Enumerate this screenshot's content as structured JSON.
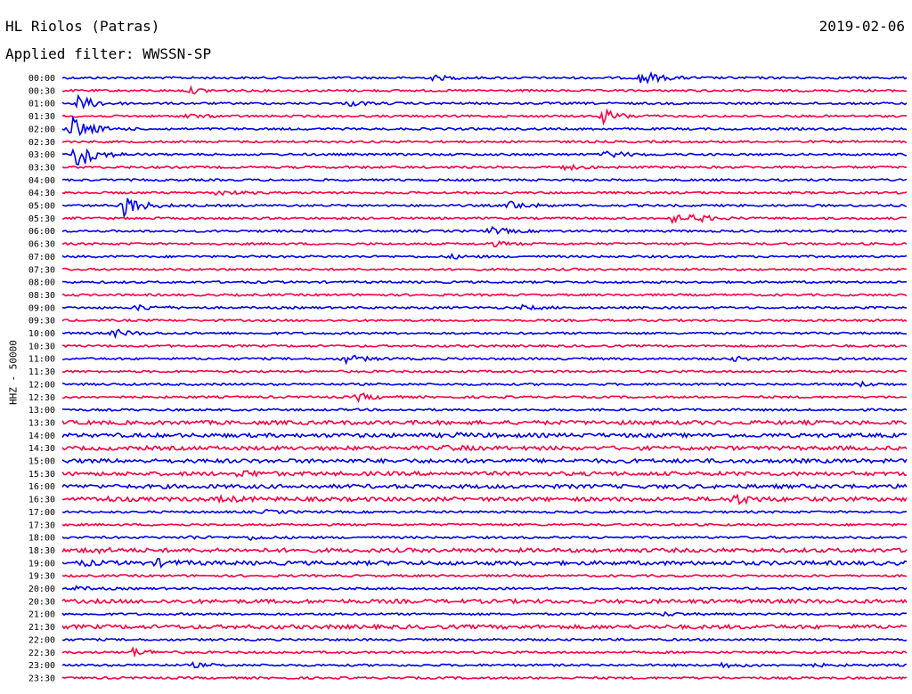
{
  "header": {
    "station": "HL Riolos (Patras)",
    "filter": "Applied filter: WWSSN-SP",
    "date": "2019-02-06"
  },
  "axis": {
    "channel_label": "HHZ - 50000"
  },
  "colors": {
    "odd": "#0000f0",
    "even": "#ff0040",
    "text": "#000000"
  },
  "chart_data": {
    "type": "line",
    "subtype": "helicorder",
    "title": "HL Riolos (Patras)",
    "subtitle": "Applied filter: WWSSN-SP",
    "ylabel": "HHZ - 50000",
    "date": "2019-02-06",
    "row_labels": [
      "00:00",
      "00:30",
      "01:00",
      "01:30",
      "02:00",
      "02:30",
      "03:00",
      "03:30",
      "04:00",
      "04:30",
      "05:00",
      "05:30",
      "06:00",
      "06:30",
      "07:00",
      "07:30",
      "08:00",
      "08:30",
      "09:00",
      "09:30",
      "10:00",
      "10:30",
      "11:00",
      "11:30",
      "12:00",
      "12:30",
      "13:00",
      "13:30",
      "14:00",
      "14:30",
      "15:00",
      "15:30",
      "16:00",
      "16:30",
      "17:00",
      "17:30",
      "18:00",
      "18:30",
      "19:00",
      "19:30",
      "20:00",
      "20:30",
      "21:00",
      "21:30",
      "22:00",
      "22:30",
      "23:00",
      "23:30"
    ],
    "minutes_per_row": 30,
    "events": [
      {
        "row": 0,
        "minute": 13.1,
        "amp": 2.5
      },
      {
        "row": 0,
        "minute": 20.5,
        "amp": 8
      },
      {
        "row": 1,
        "minute": 4.5,
        "amp": 3
      },
      {
        "row": 2,
        "minute": 0.5,
        "amp": 9
      },
      {
        "row": 2,
        "minute": 10.2,
        "amp": 2.5
      },
      {
        "row": 3,
        "minute": 4.3,
        "amp": 2.2
      },
      {
        "row": 3,
        "minute": 19.2,
        "amp": 7
      },
      {
        "row": 4,
        "minute": 0.3,
        "amp": 14
      },
      {
        "row": 6,
        "minute": 19.3,
        "amp": 4
      },
      {
        "row": 6,
        "minute": 0.5,
        "amp": 16
      },
      {
        "row": 7,
        "minute": 17.8,
        "amp": 2.5
      },
      {
        "row": 9,
        "minute": 5.4,
        "amp": 3
      },
      {
        "row": 10,
        "minute": 15.9,
        "amp": 5
      },
      {
        "row": 10,
        "minute": 2.2,
        "amp": 12
      },
      {
        "row": 11,
        "minute": 21.6,
        "amp": 4
      },
      {
        "row": 11,
        "minute": 22.4,
        "amp": 3.5
      },
      {
        "row": 12,
        "minute": 15.2,
        "amp": 4
      },
      {
        "row": 13,
        "minute": 15.1,
        "amp": 3
      },
      {
        "row": 14,
        "minute": 13.7,
        "amp": 2
      },
      {
        "row": 18,
        "minute": 2.7,
        "amp": 3
      },
      {
        "row": 18,
        "minute": 16.3,
        "amp": 2
      },
      {
        "row": 20,
        "minute": 1.8,
        "amp": 4
      },
      {
        "row": 22,
        "minute": 23.8,
        "amp": 2
      },
      {
        "row": 22,
        "minute": 10.0,
        "amp": 5
      },
      {
        "row": 24,
        "minute": 28.2,
        "amp": 2.5
      },
      {
        "row": 25,
        "minute": 10.5,
        "amp": 4
      },
      {
        "row": 28,
        "minute": 13.8,
        "amp": 1.5
      },
      {
        "row": 29,
        "minute": 13.6,
        "amp": 2
      },
      {
        "row": 31,
        "minute": 6.3,
        "amp": 3
      },
      {
        "row": 33,
        "minute": 1.3,
        "amp": 2
      },
      {
        "row": 33,
        "minute": 5.6,
        "amp": 3
      },
      {
        "row": 33,
        "minute": 23.8,
        "amp": 5
      },
      {
        "row": 34,
        "minute": 7.1,
        "amp": 1.8
      },
      {
        "row": 36,
        "minute": 4.4,
        "amp": 1.8
      },
      {
        "row": 36,
        "minute": 6.6,
        "amp": 2
      },
      {
        "row": 37,
        "minute": 0.9,
        "amp": 3
      },
      {
        "row": 38,
        "minute": 0.7,
        "amp": 2
      },
      {
        "row": 38,
        "minute": 3.4,
        "amp": 3
      },
      {
        "row": 40,
        "minute": 0.4,
        "amp": 2
      },
      {
        "row": 42,
        "minute": 21.3,
        "amp": 1.8
      },
      {
        "row": 45,
        "minute": 2.5,
        "amp": 4
      },
      {
        "row": 46,
        "minute": 4.6,
        "amp": 2
      },
      {
        "row": 46,
        "minute": 23.4,
        "amp": 2.5
      },
      {
        "row": 46,
        "minute": 26.6,
        "amp": 1.2
      }
    ],
    "noisy_rows": [
      27,
      28,
      29,
      30,
      31,
      32,
      33,
      37,
      38,
      41,
      43
    ]
  }
}
